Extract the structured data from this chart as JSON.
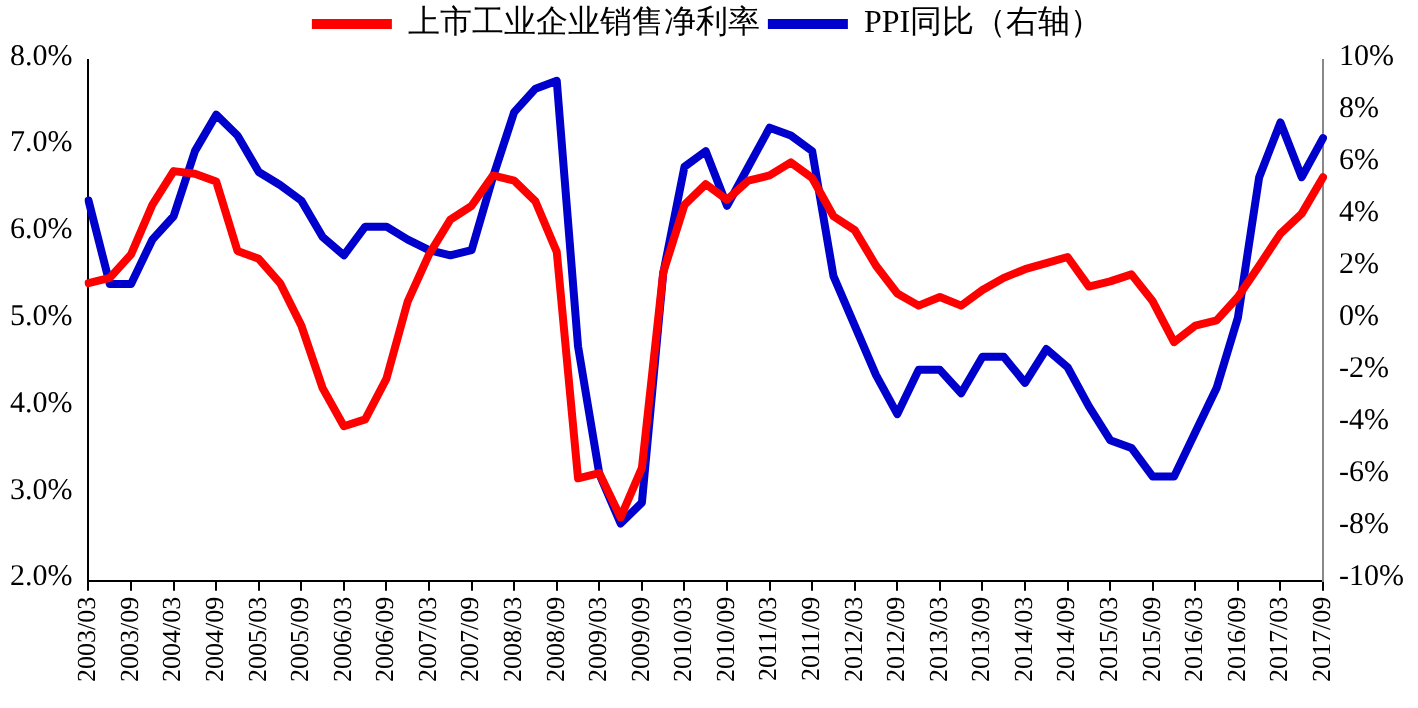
{
  "chart_data": {
    "type": "line",
    "categories": [
      "2003/03",
      null,
      "2003/09",
      null,
      "2004/03",
      null,
      "2004/09",
      null,
      "2005/03",
      null,
      "2005/09",
      null,
      "2006/03",
      null,
      "2006/09",
      null,
      "2007/03",
      null,
      "2007/09",
      null,
      "2008/03",
      null,
      "2008/09",
      null,
      "2009/03",
      null,
      "2009/09",
      null,
      "2010/03",
      null,
      "2010/09",
      null,
      "2011/03",
      null,
      "2011/09",
      null,
      "2012/03",
      null,
      "2012/09",
      null,
      "2013/03",
      null,
      "2013/09",
      null,
      "2014/03",
      null,
      "2014/09",
      null,
      "2015/03",
      null,
      "2015/09",
      null,
      "2016/03",
      null,
      "2016/09",
      null,
      "2017/03",
      null,
      "2017/09"
    ],
    "series": [
      {
        "name": "上市工业企业销售净利率",
        "color": "#ff0000",
        "values": [
          5.43,
          5.49,
          5.76,
          6.33,
          6.72,
          6.69,
          6.6,
          5.8,
          5.71,
          5.43,
          4.94,
          4.22,
          3.78,
          3.86,
          4.33,
          5.22,
          5.76,
          6.16,
          6.32,
          6.67,
          6.61,
          6.37,
          5.79,
          3.18,
          3.24,
          2.73,
          3.3,
          5.55,
          6.33,
          6.57,
          6.39,
          6.61,
          6.67,
          6.82,
          6.64,
          6.2,
          6.04,
          5.63,
          5.31,
          5.17,
          5.27,
          5.17,
          5.35,
          5.49,
          5.59,
          5.66,
          5.73,
          5.39,
          5.45,
          5.53,
          5.22,
          4.75,
          4.94,
          5.0,
          5.27,
          5.63,
          6.0,
          6.23,
          6.65
        ]
      },
      {
        "name": "PPI同比（右轴）",
        "color": "#0000cc",
        "axis": "y2",
        "values": [
          4.6,
          1.4,
          1.4,
          3.1,
          4.0,
          6.5,
          7.9,
          7.1,
          5.7,
          5.2,
          4.6,
          3.2,
          2.5,
          3.6,
          3.6,
          3.1,
          2.7,
          2.5,
          2.7,
          5.5,
          8.0,
          8.9,
          9.2,
          -1.0,
          -5.9,
          -7.8,
          -7.0,
          1.8,
          5.9,
          6.5,
          4.4,
          5.9,
          7.4,
          7.1,
          6.5,
          1.7,
          -0.2,
          -2.1,
          -3.6,
          -1.9,
          -1.9,
          -2.8,
          -1.4,
          -1.4,
          -2.4,
          -1.1,
          -1.8,
          -3.3,
          -4.6,
          -4.9,
          -6.0,
          -6.0,
          -4.3,
          -2.6,
          0.1,
          5.5,
          7.6,
          5.5,
          7.0
        ]
      }
    ],
    "ylim": [
      2,
      8
    ],
    "yticks": [
      {
        "value": 2,
        "label": "2.0%"
      },
      {
        "value": 3,
        "label": "3.0%"
      },
      {
        "value": 4,
        "label": "4.0%"
      },
      {
        "value": 5,
        "label": "5.0%"
      },
      {
        "value": 6,
        "label": "6.0%"
      },
      {
        "value": 7,
        "label": "7.0%"
      },
      {
        "value": 8,
        "label": "8.0%"
      }
    ],
    "y2lim": [
      -10,
      10
    ],
    "y2ticks": [
      {
        "value": -10,
        "label": "-10%"
      },
      {
        "value": -8,
        "label": "-8%"
      },
      {
        "value": -6,
        "label": "-6%"
      },
      {
        "value": -4,
        "label": "-4%"
      },
      {
        "value": -2,
        "label": "-2%"
      },
      {
        "value": 0,
        "label": "0%"
      },
      {
        "value": 2,
        "label": "2%"
      },
      {
        "value": 4,
        "label": "4%"
      },
      {
        "value": 6,
        "label": "6%"
      },
      {
        "value": 8,
        "label": "8%"
      },
      {
        "value": 10,
        "label": "10%"
      }
    ],
    "legend": "top",
    "grid": false,
    "marker": "none",
    "line_style": "solid"
  }
}
